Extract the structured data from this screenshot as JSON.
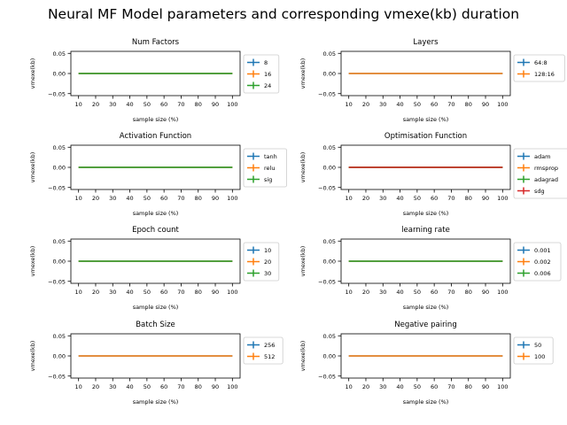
{
  "figure": {
    "suptitle": "Neural MF Model parameters and corresponding vmexe(kb) duration"
  },
  "colors": {
    "series": [
      "#1f77b4",
      "#ff7f0e",
      "#2ca02c",
      "#d62728"
    ]
  },
  "chart_data": [
    {
      "type": "line",
      "title": "Num Factors",
      "xlabel": "sample size (%)",
      "ylabel": "vmexe(kb)",
      "x": [
        10,
        20,
        30,
        40,
        50,
        60,
        70,
        80,
        90,
        100
      ],
      "xticks": [
        "10",
        "20",
        "30",
        "40",
        "50",
        "60",
        "70",
        "80",
        "90",
        "100"
      ],
      "yticks": [
        "0.05",
        "0.00",
        "−0.05"
      ],
      "ylim": [
        -0.055,
        0.055
      ],
      "xlim": [
        5.5,
        104.5
      ],
      "grid": false,
      "legend_position": "outside-right",
      "error_bars": true,
      "series": [
        {
          "name": "8",
          "values": [
            0,
            0,
            0,
            0,
            0,
            0,
            0,
            0,
            0,
            0
          ]
        },
        {
          "name": "16",
          "values": [
            0,
            0,
            0,
            0,
            0,
            0,
            0,
            0,
            0,
            0
          ]
        },
        {
          "name": "24",
          "values": [
            0,
            0,
            0,
            0,
            0,
            0,
            0,
            0,
            0,
            0
          ]
        }
      ]
    },
    {
      "type": "line",
      "title": "Layers",
      "xlabel": "sample size (%)",
      "ylabel": "vmexe(kb)",
      "x": [
        10,
        20,
        30,
        40,
        50,
        60,
        70,
        80,
        90,
        100
      ],
      "xticks": [
        "10",
        "20",
        "30",
        "40",
        "50",
        "60",
        "70",
        "80",
        "90",
        "100"
      ],
      "yticks": [
        "0.05",
        "0.00",
        "−0.05"
      ],
      "ylim": [
        -0.055,
        0.055
      ],
      "xlim": [
        5.5,
        104.5
      ],
      "grid": false,
      "legend_position": "outside-right",
      "error_bars": true,
      "series": [
        {
          "name": "64:8",
          "values": [
            0,
            0,
            0,
            0,
            0,
            0,
            0,
            0,
            0,
            0
          ]
        },
        {
          "name": "128:16",
          "values": [
            0,
            0,
            0,
            0,
            0,
            0,
            0,
            0,
            0,
            0
          ]
        }
      ]
    },
    {
      "type": "line",
      "title": "Activation Function",
      "xlabel": "sample size (%)",
      "ylabel": "vmexe(kb)",
      "x": [
        10,
        20,
        30,
        40,
        50,
        60,
        70,
        80,
        90,
        100
      ],
      "xticks": [
        "10",
        "20",
        "30",
        "40",
        "50",
        "60",
        "70",
        "80",
        "90",
        "100"
      ],
      "yticks": [
        "0.05",
        "0.00",
        "−0.05"
      ],
      "ylim": [
        -0.055,
        0.055
      ],
      "xlim": [
        5.5,
        104.5
      ],
      "grid": false,
      "legend_position": "outside-right",
      "error_bars": true,
      "series": [
        {
          "name": "tanh",
          "values": [
            0,
            0,
            0,
            0,
            0,
            0,
            0,
            0,
            0,
            0
          ]
        },
        {
          "name": "relu",
          "values": [
            0,
            0,
            0,
            0,
            0,
            0,
            0,
            0,
            0,
            0
          ]
        },
        {
          "name": "sig",
          "values": [
            0,
            0,
            0,
            0,
            0,
            0,
            0,
            0,
            0,
            0
          ]
        }
      ]
    },
    {
      "type": "line",
      "title": "Optimisation Function",
      "xlabel": "sample size (%)",
      "ylabel": "vmexe(kb)",
      "x": [
        10,
        20,
        30,
        40,
        50,
        60,
        70,
        80,
        90,
        100
      ],
      "xticks": [
        "10",
        "20",
        "30",
        "40",
        "50",
        "60",
        "70",
        "80",
        "90",
        "100"
      ],
      "yticks": [
        "0.05",
        "0.00",
        "−0.05"
      ],
      "ylim": [
        -0.055,
        0.055
      ],
      "xlim": [
        5.5,
        104.5
      ],
      "grid": false,
      "legend_position": "outside-right",
      "error_bars": true,
      "series": [
        {
          "name": "adam",
          "values": [
            0,
            0,
            0,
            0,
            0,
            0,
            0,
            0,
            0,
            0
          ]
        },
        {
          "name": "rmsprop",
          "values": [
            0,
            0,
            0,
            0,
            0,
            0,
            0,
            0,
            0,
            0
          ]
        },
        {
          "name": "adagrad",
          "values": [
            0,
            0,
            0,
            0,
            0,
            0,
            0,
            0,
            0,
            0
          ]
        },
        {
          "name": "sdg",
          "values": [
            0,
            0,
            0,
            0,
            0,
            0,
            0,
            0,
            0,
            0
          ]
        }
      ]
    },
    {
      "type": "line",
      "title": "Epoch count",
      "xlabel": "sample size (%)",
      "ylabel": "vmexe(kb)",
      "x": [
        10,
        20,
        30,
        40,
        50,
        60,
        70,
        80,
        90,
        100
      ],
      "xticks": [
        "10",
        "20",
        "30",
        "40",
        "50",
        "60",
        "70",
        "80",
        "90",
        "100"
      ],
      "yticks": [
        "0.05",
        "0.00",
        "−0.05"
      ],
      "ylim": [
        -0.055,
        0.055
      ],
      "xlim": [
        5.5,
        104.5
      ],
      "grid": false,
      "legend_position": "outside-right",
      "error_bars": true,
      "series": [
        {
          "name": "10",
          "values": [
            0,
            0,
            0,
            0,
            0,
            0,
            0,
            0,
            0,
            0
          ]
        },
        {
          "name": "20",
          "values": [
            0,
            0,
            0,
            0,
            0,
            0,
            0,
            0,
            0,
            0
          ]
        },
        {
          "name": "30",
          "values": [
            0,
            0,
            0,
            0,
            0,
            0,
            0,
            0,
            0,
            0
          ]
        }
      ]
    },
    {
      "type": "line",
      "title": "learning rate",
      "xlabel": "sample size (%)",
      "ylabel": "vmexe(kb)",
      "x": [
        10,
        20,
        30,
        40,
        50,
        60,
        70,
        80,
        90,
        100
      ],
      "xticks": [
        "10",
        "20",
        "30",
        "40",
        "50",
        "60",
        "70",
        "80",
        "90",
        "100"
      ],
      "yticks": [
        "0.05",
        "0.00",
        "−0.05"
      ],
      "ylim": [
        -0.055,
        0.055
      ],
      "xlim": [
        5.5,
        104.5
      ],
      "grid": false,
      "legend_position": "outside-right",
      "error_bars": true,
      "series": [
        {
          "name": "0.001",
          "values": [
            0,
            0,
            0,
            0,
            0,
            0,
            0,
            0,
            0,
            0
          ]
        },
        {
          "name": "0.002",
          "values": [
            0,
            0,
            0,
            0,
            0,
            0,
            0,
            0,
            0,
            0
          ]
        },
        {
          "name": "0.006",
          "values": [
            0,
            0,
            0,
            0,
            0,
            0,
            0,
            0,
            0,
            0
          ]
        }
      ]
    },
    {
      "type": "line",
      "title": "Batch Size",
      "xlabel": "sample size (%)",
      "ylabel": "vmexe(kb)",
      "x": [
        10,
        20,
        30,
        40,
        50,
        60,
        70,
        80,
        90,
        100
      ],
      "xticks": [
        "10",
        "20",
        "30",
        "40",
        "50",
        "60",
        "70",
        "80",
        "90",
        "100"
      ],
      "yticks": [
        "0.05",
        "0.00",
        "−0.05"
      ],
      "ylim": [
        -0.055,
        0.055
      ],
      "xlim": [
        5.5,
        104.5
      ],
      "grid": false,
      "legend_position": "outside-right",
      "error_bars": true,
      "series": [
        {
          "name": "256",
          "values": [
            0,
            0,
            0,
            0,
            0,
            0,
            0,
            0,
            0,
            0
          ]
        },
        {
          "name": "512",
          "values": [
            0,
            0,
            0,
            0,
            0,
            0,
            0,
            0,
            0,
            0
          ]
        }
      ]
    },
    {
      "type": "line",
      "title": "Negative pairing",
      "xlabel": "sample size (%)",
      "ylabel": "vmexe(kb)",
      "x": [
        10,
        20,
        30,
        40,
        50,
        60,
        70,
        80,
        90,
        100
      ],
      "xticks": [
        "10",
        "20",
        "30",
        "40",
        "50",
        "60",
        "70",
        "80",
        "90",
        "100"
      ],
      "yticks": [
        "0.05",
        "0.00",
        "−0.05"
      ],
      "ylim": [
        -0.055,
        0.055
      ],
      "xlim": [
        5.5,
        104.5
      ],
      "grid": false,
      "legend_position": "outside-right",
      "error_bars": true,
      "series": [
        {
          "name": "50",
          "values": [
            0,
            0,
            0,
            0,
            0,
            0,
            0,
            0,
            0,
            0
          ]
        },
        {
          "name": "100",
          "values": [
            0,
            0,
            0,
            0,
            0,
            0,
            0,
            0,
            0,
            0
          ]
        }
      ]
    }
  ]
}
